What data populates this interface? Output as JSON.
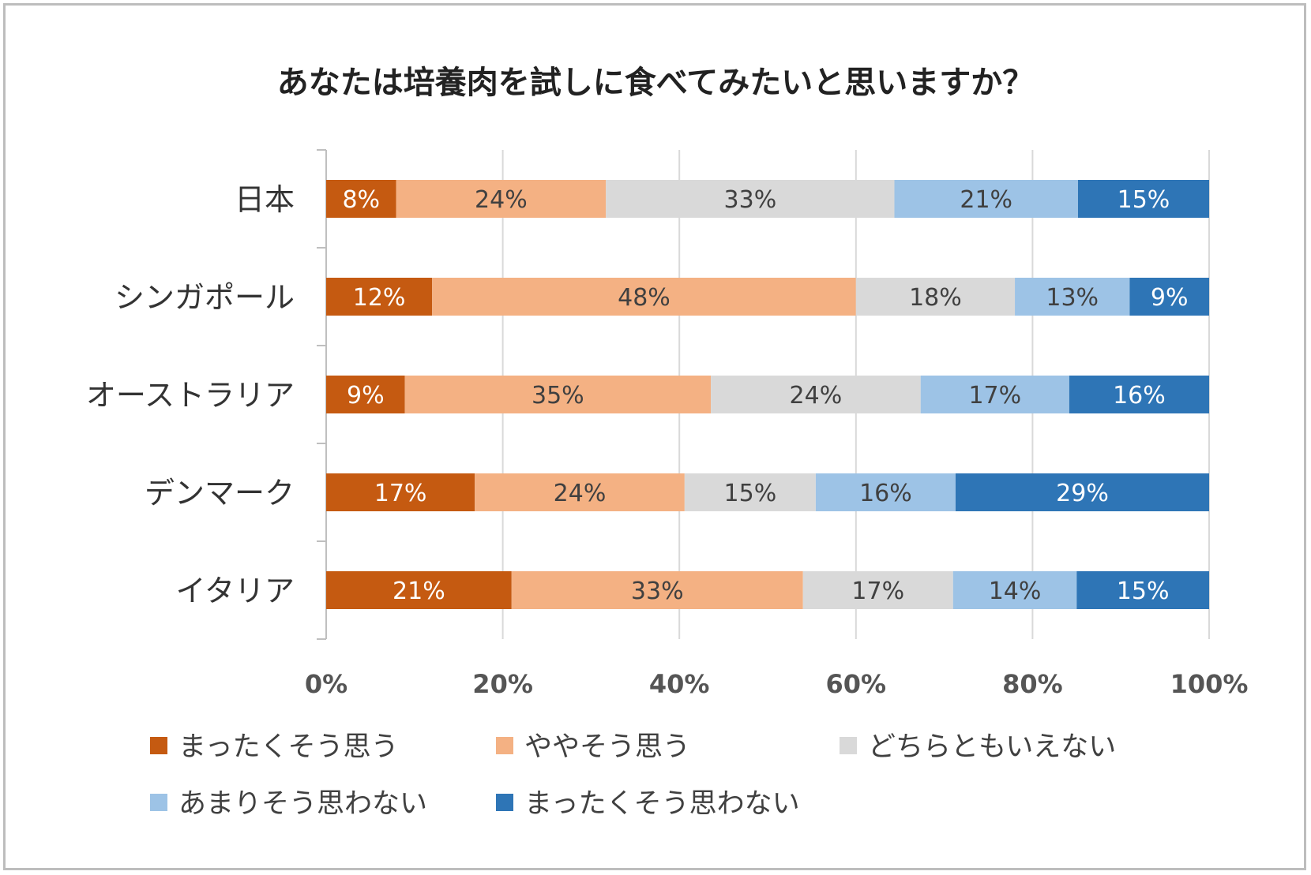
{
  "chart_data": {
    "type": "bar",
    "orientation": "horizontal",
    "stacked": true,
    "title": "あなたは培養肉を試しに食べてみたいと思いますか？",
    "categories": [
      "日本",
      "シンガポール",
      "オーストラリア",
      "デンマーク",
      "イタリア"
    ],
    "series": [
      {
        "name": "まったくそう思う",
        "color": "#c55a11",
        "values": [
          8,
          12,
          9,
          17,
          21
        ]
      },
      {
        "name": "ややそう思う",
        "color": "#f4b183",
        "values": [
          24,
          48,
          35,
          24,
          33
        ]
      },
      {
        "name": "どちらともいえない",
        "color": "#d9d9d9",
        "values": [
          33,
          18,
          24,
          15,
          17
        ]
      },
      {
        "name": "あまりそう思わない",
        "color": "#9dc3e6",
        "values": [
          21,
          13,
          17,
          16,
          14
        ]
      },
      {
        "name": "まったくそう思わない",
        "color": "#2e75b6",
        "values": [
          15,
          9,
          16,
          29,
          15
        ]
      }
    ],
    "xlim": [
      0,
      100
    ],
    "xticks": [
      "0%",
      "20%",
      "40%",
      "60%",
      "80%",
      "100%"
    ],
    "grid": true,
    "legend_position": "bottom"
  }
}
